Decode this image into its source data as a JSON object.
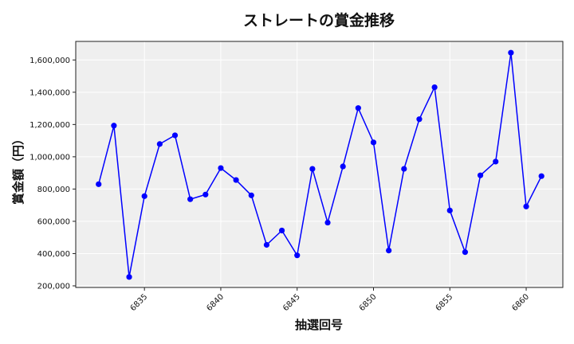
{
  "chart_data": {
    "type": "line",
    "title": "ストレートの賞金推移",
    "xlabel": "抽選回号",
    "ylabel": "賞金額（円）",
    "x": [
      6832,
      6833,
      6834,
      6835,
      6836,
      6837,
      6838,
      6839,
      6840,
      6841,
      6842,
      6843,
      6844,
      6845,
      6846,
      6847,
      6848,
      6849,
      6850,
      6851,
      6852,
      6853,
      6854,
      6855,
      6856,
      6857,
      6858,
      6859,
      6860,
      6861
    ],
    "series": [
      {
        "name": "ストレート",
        "color": "#0000ff",
        "marker": "circle",
        "values": [
          830000,
          1193000,
          255000,
          756000,
          1079000,
          1133000,
          737000,
          766000,
          930000,
          856000,
          761000,
          454000,
          543000,
          389000,
          925000,
          592000,
          940000,
          1302000,
          1089000,
          419000,
          925000,
          1233000,
          1431000,
          667000,
          409000,
          885000,
          970000,
          1645000,
          692000,
          880000
        ]
      }
    ],
    "x_ticks": [
      6835,
      6840,
      6845,
      6850,
      6855,
      6860
    ],
    "x_tick_labels": [
      "6835",
      "6840",
      "6845",
      "6850",
      "6855",
      "6860"
    ],
    "y_ticks": [
      200000,
      400000,
      600000,
      800000,
      1000000,
      1200000,
      1400000,
      1600000
    ],
    "y_tick_labels": [
      "200,000",
      "400,000",
      "600,000",
      "800,000",
      "1,000,000",
      "1,200,000",
      "1,400,000",
      "1,600,000"
    ],
    "xlim": [
      6830.5,
      6862.4
    ],
    "ylim": [
      190000,
      1715000
    ],
    "grid": true,
    "background": "#efefef",
    "legend": null
  }
}
